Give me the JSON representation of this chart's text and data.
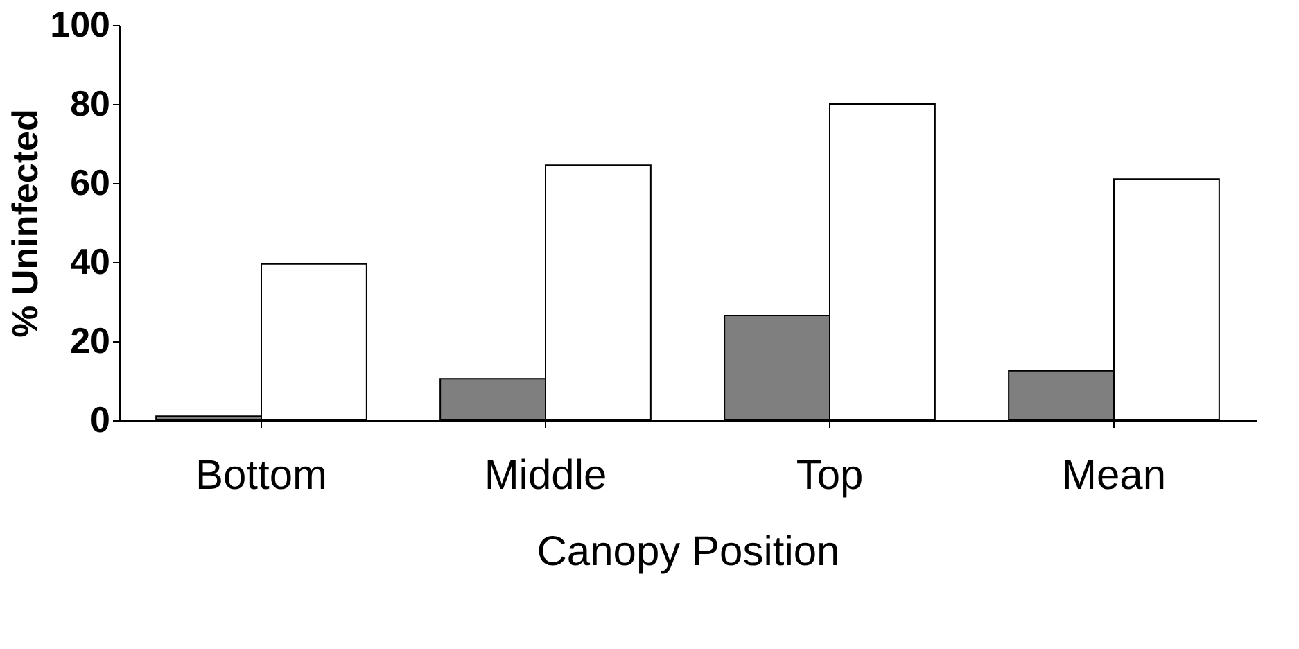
{
  "chart_data": {
    "type": "bar",
    "xlabel": "Canopy Position",
    "ylabel": "% Uninfected",
    "categories": [
      "Bottom",
      "Middle",
      "Top",
      "Mean"
    ],
    "series": [
      {
        "color": "#7f7f7f",
        "values": [
          1,
          10.5,
          26.5,
          12.5
        ]
      },
      {
        "color": "#ffffff",
        "values": [
          39.5,
          64.5,
          80,
          61
        ]
      }
    ],
    "ylim": [
      0,
      100
    ],
    "yticks": [
      0,
      20,
      40,
      60,
      80,
      100
    ],
    "grid": false,
    "legend": false
  }
}
